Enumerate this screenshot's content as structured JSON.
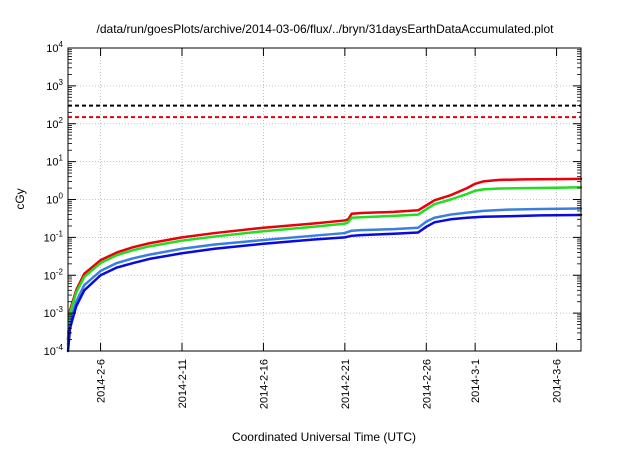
{
  "chart_data": {
    "type": "line",
    "title": "/data/run/goesPlots/archive/2014-03-06/flux/../bryn/31daysEarthDataAccumulated.plot",
    "xlabel": "Coordinated Universal Time (UTC)",
    "ylabel": "cGy",
    "y_scale": "log",
    "ylim": [
      0.0001,
      10000
    ],
    "xlim": [
      "2014-02-04T00:00",
      "2014-03-07T12:00"
    ],
    "grid": true,
    "legend": "none",
    "y_ticks": [
      {
        "base": "10",
        "exp": "-4",
        "value": 0.0001
      },
      {
        "base": "10",
        "exp": "-3",
        "value": 0.001
      },
      {
        "base": "10",
        "exp": "-2",
        "value": 0.01
      },
      {
        "base": "10",
        "exp": "-1",
        "value": 0.1
      },
      {
        "base": "10",
        "exp": "0",
        "value": 1
      },
      {
        "base": "10",
        "exp": "1",
        "value": 10
      },
      {
        "base": "10",
        "exp": "2",
        "value": 100
      },
      {
        "base": "10",
        "exp": "3",
        "value": 1000
      },
      {
        "base": "10",
        "exp": "4",
        "value": 10000
      }
    ],
    "x_ticks": [
      {
        "label": "2014-2-6",
        "date": "2014-02-06"
      },
      {
        "label": "2014-2-11",
        "date": "2014-02-11"
      },
      {
        "label": "2014-2-16",
        "date": "2014-02-16"
      },
      {
        "label": "2014-2-21",
        "date": "2014-02-21"
      },
      {
        "label": "2014-2-26",
        "date": "2014-02-26"
      },
      {
        "label": "2014-3-1",
        "date": "2014-03-01"
      },
      {
        "label": "2014-3-6",
        "date": "2014-03-06"
      }
    ],
    "reference_lines": [
      {
        "value": 300,
        "color": "#000000",
        "style": "dashed"
      },
      {
        "value": 150,
        "color": "#e8000b",
        "style": "dashed"
      }
    ],
    "series": [
      {
        "color": "#e8000b",
        "points": [
          [
            "2014-02-04T00:00",
            0.0002
          ],
          [
            "2014-02-04T03:00",
            0.0012
          ],
          [
            "2014-02-04T12:00",
            0.004
          ],
          [
            "2014-02-05T00:00",
            0.011
          ],
          [
            "2014-02-06T00:00",
            0.025
          ],
          [
            "2014-02-07T00:00",
            0.04
          ],
          [
            "2014-02-08T00:00",
            0.055
          ],
          [
            "2014-02-09T00:00",
            0.07
          ],
          [
            "2014-02-11T00:00",
            0.1
          ],
          [
            "2014-02-13T00:00",
            0.13
          ],
          [
            "2014-02-16T00:00",
            0.18
          ],
          [
            "2014-02-19T00:00",
            0.23
          ],
          [
            "2014-02-21T00:00",
            0.28
          ],
          [
            "2014-02-21T05:00",
            0.3
          ],
          [
            "2014-02-21T10:00",
            0.42
          ],
          [
            "2014-02-22T00:00",
            0.44
          ],
          [
            "2014-02-24T00:00",
            0.47
          ],
          [
            "2014-02-25T12:00",
            0.52
          ],
          [
            "2014-02-26T00:00",
            0.7
          ],
          [
            "2014-02-26T12:00",
            0.95
          ],
          [
            "2014-02-27T12:00",
            1.3
          ],
          [
            "2014-02-28T12:00",
            2.0
          ],
          [
            "2014-03-01T00:00",
            2.6
          ],
          [
            "2014-03-01T12:00",
            3.0
          ],
          [
            "2014-03-02T12:00",
            3.3
          ],
          [
            "2014-03-04T00:00",
            3.4
          ],
          [
            "2014-03-06T00:00",
            3.45
          ],
          [
            "2014-03-07T12:00",
            3.5
          ]
        ]
      },
      {
        "color": "#22dd22",
        "points": [
          [
            "2014-02-04T00:00",
            0.0002
          ],
          [
            "2014-02-04T03:00",
            0.001
          ],
          [
            "2014-02-04T12:00",
            0.0035
          ],
          [
            "2014-02-05T00:00",
            0.009
          ],
          [
            "2014-02-06T00:00",
            0.021
          ],
          [
            "2014-02-07T00:00",
            0.034
          ],
          [
            "2014-02-08T00:00",
            0.046
          ],
          [
            "2014-02-09T00:00",
            0.058
          ],
          [
            "2014-02-11T00:00",
            0.082
          ],
          [
            "2014-02-13T00:00",
            0.105
          ],
          [
            "2014-02-16T00:00",
            0.145
          ],
          [
            "2014-02-19T00:00",
            0.19
          ],
          [
            "2014-02-21T00:00",
            0.23
          ],
          [
            "2014-02-21T05:00",
            0.25
          ],
          [
            "2014-02-21T10:00",
            0.33
          ],
          [
            "2014-02-22T00:00",
            0.34
          ],
          [
            "2014-02-24T00:00",
            0.37
          ],
          [
            "2014-02-25T12:00",
            0.4
          ],
          [
            "2014-02-26T00:00",
            0.55
          ],
          [
            "2014-02-26T12:00",
            0.75
          ],
          [
            "2014-02-27T12:00",
            1.0
          ],
          [
            "2014-02-28T12:00",
            1.4
          ],
          [
            "2014-03-01T00:00",
            1.7
          ],
          [
            "2014-03-01T12:00",
            1.85
          ],
          [
            "2014-03-02T12:00",
            1.95
          ],
          [
            "2014-03-04T00:00",
            2.0
          ],
          [
            "2014-03-06T00:00",
            2.05
          ],
          [
            "2014-03-07T12:00",
            2.1
          ]
        ]
      },
      {
        "color": "#3a7fe0",
        "points": [
          [
            "2014-02-04T00:00",
            0.00015
          ],
          [
            "2014-02-04T03:00",
            0.0006
          ],
          [
            "2014-02-04T12:00",
            0.002
          ],
          [
            "2014-02-05T00:00",
            0.0055
          ],
          [
            "2014-02-06T00:00",
            0.013
          ],
          [
            "2014-02-07T00:00",
            0.021
          ],
          [
            "2014-02-08T00:00",
            0.028
          ],
          [
            "2014-02-09T00:00",
            0.035
          ],
          [
            "2014-02-11T00:00",
            0.05
          ],
          [
            "2014-02-13T00:00",
            0.065
          ],
          [
            "2014-02-16T00:00",
            0.085
          ],
          [
            "2014-02-19T00:00",
            0.11
          ],
          [
            "2014-02-21T00:00",
            0.13
          ],
          [
            "2014-02-21T05:00",
            0.14
          ],
          [
            "2014-02-21T10:00",
            0.15
          ],
          [
            "2014-02-22T00:00",
            0.155
          ],
          [
            "2014-02-24T00:00",
            0.165
          ],
          [
            "2014-02-25T12:00",
            0.18
          ],
          [
            "2014-02-26T00:00",
            0.26
          ],
          [
            "2014-02-26T12:00",
            0.33
          ],
          [
            "2014-02-27T12:00",
            0.4
          ],
          [
            "2014-02-28T12:00",
            0.45
          ],
          [
            "2014-03-01T12:00",
            0.5
          ],
          [
            "2014-03-03T00:00",
            0.54
          ],
          [
            "2014-03-05T00:00",
            0.56
          ],
          [
            "2014-03-07T12:00",
            0.58
          ]
        ]
      },
      {
        "color": "#0a0adc",
        "points": [
          [
            "2014-02-04T00:00",
            0.0001
          ],
          [
            "2014-02-04T03:00",
            0.0004
          ],
          [
            "2014-02-04T12:00",
            0.0015
          ],
          [
            "2014-02-05T00:00",
            0.004
          ],
          [
            "2014-02-06T00:00",
            0.01
          ],
          [
            "2014-02-07T00:00",
            0.016
          ],
          [
            "2014-02-08T00:00",
            0.021
          ],
          [
            "2014-02-09T00:00",
            0.027
          ],
          [
            "2014-02-11T00:00",
            0.038
          ],
          [
            "2014-02-13T00:00",
            0.05
          ],
          [
            "2014-02-16T00:00",
            0.068
          ],
          [
            "2014-02-19T00:00",
            0.087
          ],
          [
            "2014-02-21T00:00",
            0.1
          ],
          [
            "2014-02-21T05:00",
            0.105
          ],
          [
            "2014-02-21T10:00",
            0.11
          ],
          [
            "2014-02-22T00:00",
            0.115
          ],
          [
            "2014-02-24T00:00",
            0.125
          ],
          [
            "2014-02-25T12:00",
            0.135
          ],
          [
            "2014-02-26T00:00",
            0.19
          ],
          [
            "2014-02-26T12:00",
            0.25
          ],
          [
            "2014-02-27T12:00",
            0.3
          ],
          [
            "2014-02-28T12:00",
            0.33
          ],
          [
            "2014-03-01T12:00",
            0.35
          ],
          [
            "2014-03-03T00:00",
            0.36
          ],
          [
            "2014-03-05T00:00",
            0.38
          ],
          [
            "2014-03-07T12:00",
            0.39
          ]
        ]
      }
    ]
  }
}
